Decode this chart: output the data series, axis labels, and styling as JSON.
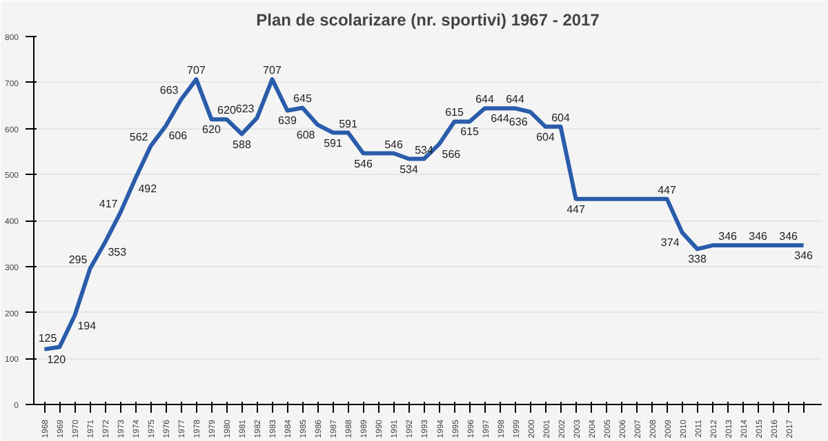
{
  "chart_data": {
    "type": "line",
    "title": "Plan de scolarizare (nr. sportivi) 1967 - 2017",
    "categories": [
      "1968",
      "1969",
      "1970",
      "1971",
      "1972",
      "1973",
      "1974",
      "1975",
      "1976",
      "1977",
      "1978",
      "1979",
      "1980",
      "1981",
      "1982",
      "1983",
      "1984",
      "1985",
      "1986",
      "1987",
      "1988",
      "1989",
      "1990",
      "1991",
      "1992",
      "1993",
      "1994",
      "1995",
      "1996",
      "1997",
      "1998",
      "1999",
      "2000",
      "2001",
      "2002",
      "2003",
      "2004",
      "2005",
      "2006",
      "2007",
      "2008",
      "2009",
      "2010",
      "2011",
      "2012",
      "2013",
      "2014",
      "2015",
      "2016",
      "2017",
      null
    ],
    "series": [
      {
        "color": "#2a5caa",
        "values": [
          120,
          125,
          194,
          295,
          353,
          417,
          492,
          562,
          606,
          663,
          707,
          620,
          620,
          588,
          623,
          707,
          639,
          645,
          608,
          591,
          591,
          546,
          546,
          546,
          534,
          534,
          566,
          615,
          615,
          644,
          644,
          644,
          636,
          604,
          604,
          447,
          447,
          447,
          447,
          447,
          447,
          447,
          374,
          338,
          346,
          346,
          346,
          346,
          346,
          346,
          346
        ],
        "value_labels": [
          "120",
          "125",
          "194",
          "295",
          "353",
          "417",
          "492",
          "562",
          "606",
          "663",
          "707",
          "620",
          "620",
          "588",
          "623",
          "707",
          "639",
          "645",
          "608",
          "591",
          "591",
          "546",
          null,
          "546",
          "534",
          "534",
          "566",
          "615",
          "615",
          "644",
          "644",
          "644",
          "636",
          "604",
          "604",
          "447",
          null,
          null,
          null,
          null,
          null,
          "447",
          "374",
          "338",
          null,
          "346",
          null,
          "346",
          null,
          "346",
          "346"
        ]
      }
    ],
    "ylim": [
      0,
      800
    ],
    "yticks": [
      0,
      100,
      200,
      300,
      400,
      500,
      600,
      700,
      800
    ],
    "grid": "y",
    "marker": "none",
    "line_style": "solid"
  }
}
